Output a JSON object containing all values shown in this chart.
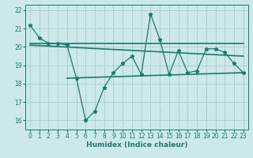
{
  "x": [
    0,
    1,
    2,
    3,
    4,
    5,
    6,
    7,
    8,
    9,
    10,
    11,
    12,
    13,
    14,
    15,
    16,
    17,
    18,
    19,
    20,
    21,
    22,
    23
  ],
  "y_main": [
    21.2,
    20.5,
    20.2,
    20.2,
    20.1,
    18.3,
    16.0,
    16.5,
    17.8,
    18.6,
    19.1,
    19.5,
    18.5,
    21.8,
    20.4,
    18.5,
    19.8,
    18.6,
    18.7,
    19.9,
    19.9,
    19.7,
    19.1,
    18.6
  ],
  "trend1_x": [
    0,
    23
  ],
  "trend1_y": [
    20.2,
    20.2
  ],
  "trend2_x": [
    0,
    23
  ],
  "trend2_y": [
    20.1,
    19.5
  ],
  "trend3_x": [
    4,
    23
  ],
  "trend3_y": [
    18.3,
    18.6
  ],
  "line_color": "#1a7a6e",
  "bg_color": "#cce8e8",
  "grid_color": "#aacccc",
  "xlabel": "Humidex (Indice chaleur)",
  "ylim": [
    15.5,
    22.3
  ],
  "xlim": [
    -0.5,
    23.5
  ],
  "yticks": [
    16,
    17,
    18,
    19,
    20,
    21,
    22
  ],
  "xticks": [
    0,
    1,
    2,
    3,
    4,
    5,
    6,
    7,
    8,
    9,
    10,
    11,
    12,
    13,
    14,
    15,
    16,
    17,
    18,
    19,
    20,
    21,
    22,
    23
  ],
  "marker": "*",
  "markersize": 3.5,
  "linewidth": 0.9,
  "tick_fontsize": 5.5,
  "xlabel_fontsize": 6.5
}
